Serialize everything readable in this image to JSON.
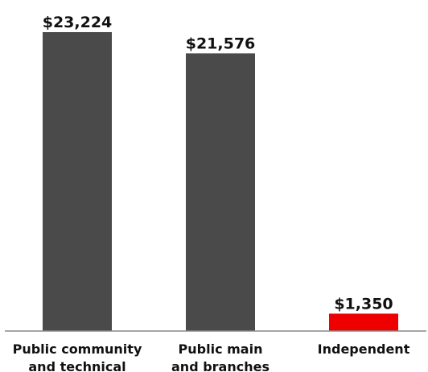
{
  "chart_data": {
    "type": "bar",
    "categories": [
      [
        "Public community",
        "and technical"
      ],
      [
        "Public main",
        "and branches"
      ],
      [
        "Independent"
      ]
    ],
    "values": [
      23224,
      21576,
      1350
    ],
    "value_labels": [
      "$23,224",
      "$21,576",
      "$1,350"
    ],
    "colors": [
      "#4a4a4a",
      "#4a4a4a",
      "#ee0000"
    ],
    "title": "",
    "xlabel": "",
    "ylabel": "",
    "ylim": [
      0,
      23224
    ],
    "grid": false,
    "legend": "none"
  }
}
